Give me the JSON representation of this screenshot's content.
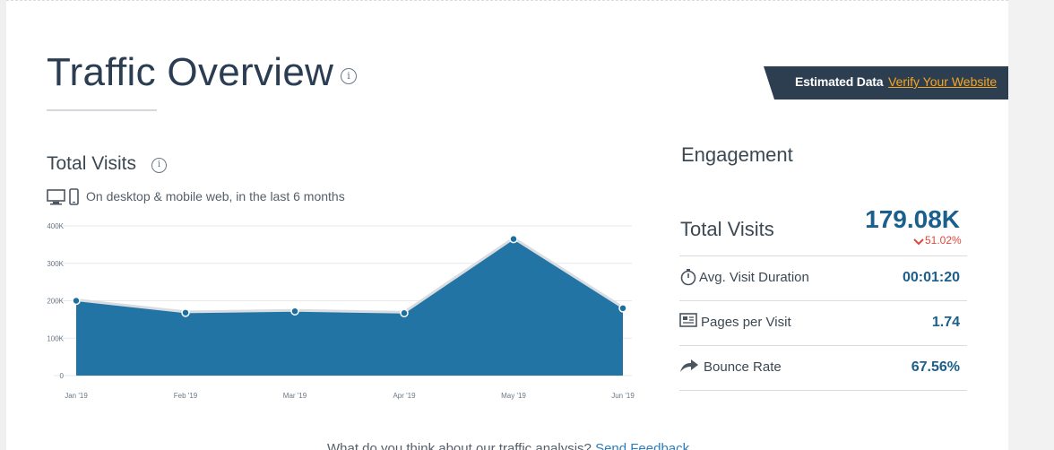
{
  "page": {
    "title": "Traffic Overview",
    "info_icon": "info-icon"
  },
  "banner": {
    "estimated_label": "Estimated Data",
    "verify_link": "Verify Your Website"
  },
  "total_visits_panel": {
    "title": "Total Visits",
    "subtitle": "On desktop & mobile web, in the last 6 months",
    "icons": [
      "desktop-icon",
      "mobile-icon"
    ]
  },
  "chart_data": {
    "type": "area",
    "categories": [
      "Jan '19",
      "Feb '19",
      "Mar '19",
      "Apr '19",
      "May '19",
      "Jun '19"
    ],
    "values": [
      200000,
      168000,
      172000,
      167000,
      365000,
      180000
    ],
    "yticks": [
      "0",
      "100K",
      "200K",
      "300K",
      "400K"
    ],
    "ylim": [
      0,
      400000
    ],
    "colors": {
      "fill": "#2274a5",
      "line": "#d9dde1",
      "point": "#1f6f9e"
    },
    "grid": true
  },
  "engagement": {
    "title": "Engagement",
    "total_visits_label": "Total Visits",
    "total_visits_value": "179.08K",
    "total_visits_change": "51.02%",
    "rows": [
      {
        "label": "Avg. Visit Duration",
        "value": "00:01:20",
        "icon": "stopwatch-icon"
      },
      {
        "label": "Pages per Visit",
        "value": "1.74",
        "icon": "pages-icon"
      },
      {
        "label": "Bounce Rate",
        "value": "67.56%",
        "icon": "bounce-arrow-icon"
      }
    ]
  },
  "feedback": {
    "question": "What do you think about our traffic analysis?",
    "link": "Send Feedback"
  },
  "colors": {
    "accent": "#1b5f8c",
    "banner_bg": "#2d3e50",
    "link_orange": "#f5a623",
    "negative": "#e0483b"
  }
}
